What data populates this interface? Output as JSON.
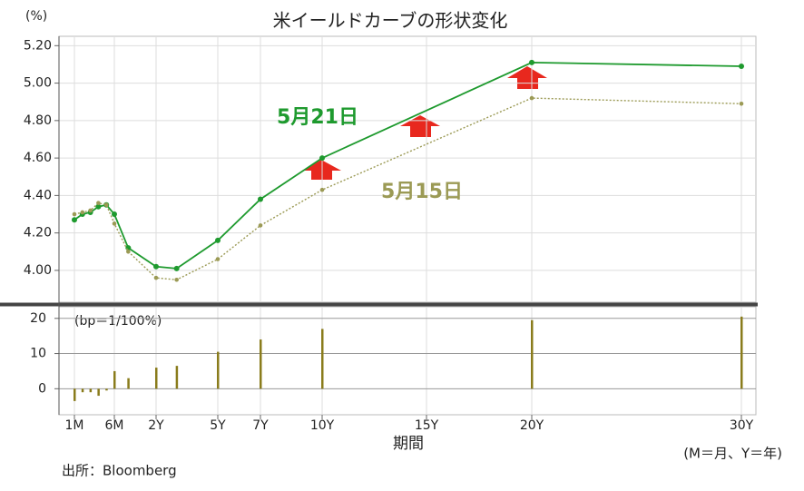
{
  "chart_data": [
    {
      "type": "line",
      "title": "米イールドカーブの形状変化",
      "ylabel": "(%)",
      "x": [
        0.0833,
        0.1667,
        0.25,
        0.3333,
        0.4167,
        0.5,
        1,
        2,
        3,
        5,
        7,
        10,
        20,
        30
      ],
      "series": [
        {
          "name": "5月21日",
          "color": "#1e9a2e",
          "values": [
            4.27,
            4.3,
            4.31,
            4.34,
            4.35,
            4.3,
            4.12,
            4.02,
            4.01,
            4.16,
            4.38,
            4.6,
            5.11,
            5.09
          ]
        },
        {
          "name": "5月15日",
          "color": "#9b9a55",
          "values": [
            4.3,
            4.31,
            4.32,
            4.36,
            4.35,
            4.25,
            4.1,
            3.96,
            3.95,
            4.06,
            4.24,
            4.43,
            4.92,
            4.89
          ]
        }
      ],
      "ylim": [
        3.83,
        5.25
      ],
      "yticks": [
        {
          "value": 4.0,
          "label": "4.00"
        },
        {
          "value": 4.2,
          "label": "4.20"
        },
        {
          "value": 4.4,
          "label": "4.40"
        },
        {
          "value": 4.6,
          "label": "4.60"
        },
        {
          "value": 4.8,
          "label": "4.80"
        },
        {
          "value": 5.0,
          "label": "5.00"
        },
        {
          "value": 5.2,
          "label": "5.20"
        }
      ],
      "grid": true
    },
    {
      "type": "bar",
      "ylabel": "(bp＝1/100%)",
      "xlabel": "期間",
      "note": "(M＝月、Y＝年)",
      "source": "出所：Bloomberg",
      "x": [
        0.0833,
        0.1667,
        0.25,
        0.3333,
        0.4167,
        0.5,
        1,
        2,
        3,
        5,
        7,
        10,
        20,
        30
      ],
      "values": [
        -3.5,
        -1,
        -1,
        -2,
        -0.5,
        5,
        3,
        6,
        6.5,
        10.5,
        14,
        17,
        19.5,
        20.5
      ],
      "color": "#8a7c1c",
      "ylim": [
        -7.4,
        23.3
      ],
      "yticks": [
        0,
        10,
        20
      ],
      "xticks": [
        {
          "value": 0.0833,
          "label": "1M"
        },
        {
          "value": 0.5,
          "label": "6M"
        },
        {
          "value": 2,
          "label": "2Y"
        },
        {
          "value": 5,
          "label": "5Y"
        },
        {
          "value": 7,
          "label": "7Y"
        },
        {
          "value": 10,
          "label": "10Y"
        },
        {
          "value": 15,
          "label": "15Y"
        },
        {
          "value": 20,
          "label": "20Y"
        },
        {
          "value": 30,
          "label": "30Y"
        }
      ],
      "grid": true
    }
  ]
}
